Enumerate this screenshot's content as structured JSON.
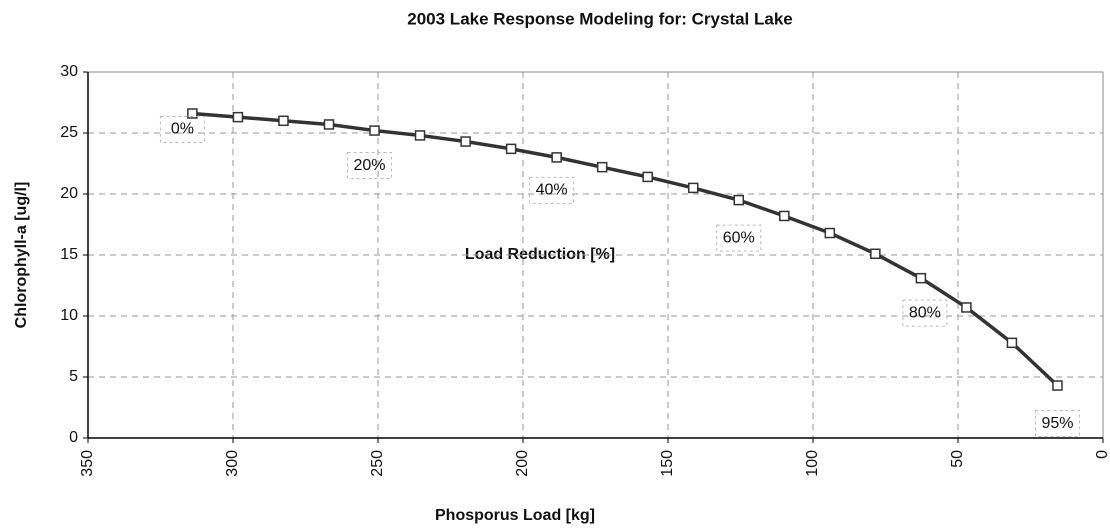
{
  "chart_data": {
    "type": "line",
    "title": "2003 Lake Response Modeling for: Crystal Lake",
    "x_label": "Phosporus Load [kg]",
    "y_label": "Chlorophyll-a [ug/l]",
    "annotation_title": "Load Reduction [%]",
    "annotations": [
      "0%",
      "20%",
      "40%",
      "60%",
      "80%",
      "95%"
    ],
    "x": [
      314,
      298.3,
      282.6,
      266.9,
      251.2,
      235.5,
      219.8,
      204.1,
      188.4,
      172.7,
      157,
      141.3,
      125.6,
      109.9,
      94.2,
      78.5,
      62.8,
      47.1,
      31.4,
      15.7
    ],
    "series": [
      {
        "color": "#333333",
        "values": [
          26.6,
          26.3,
          26.0,
          25.7,
          25.2,
          24.8,
          24.3,
          23.7,
          23.0,
          22.2,
          21.4,
          20.5,
          19.5,
          18.2,
          16.8,
          15.1,
          13.1,
          10.7,
          7.8,
          4.3
        ]
      }
    ],
    "xlim": [
      350,
      0
    ],
    "xticks": [
      350,
      300,
      250,
      200,
      150,
      100,
      50,
      0
    ],
    "ylim": [
      0,
      30
    ],
    "yticks": [
      0,
      5,
      10,
      15,
      20,
      25,
      30
    ],
    "grid": true
  }
}
